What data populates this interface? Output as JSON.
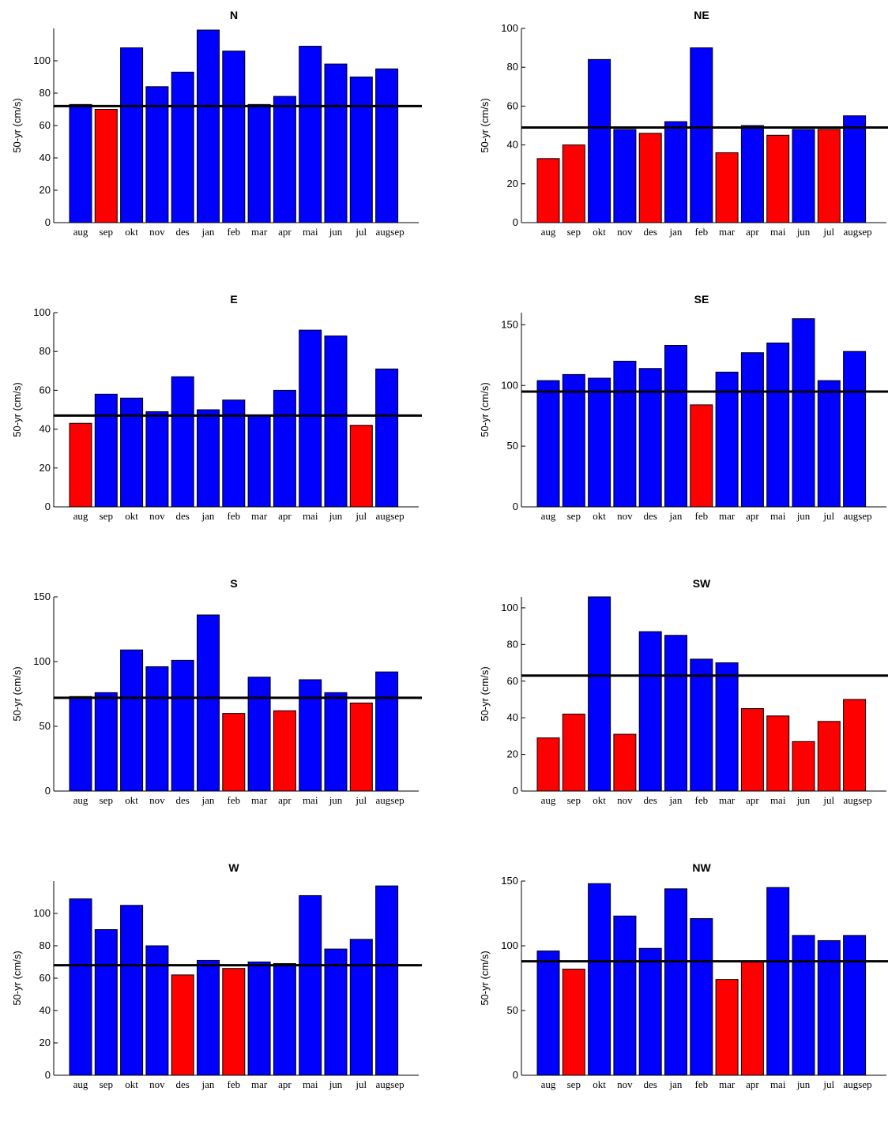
{
  "chart_data": [
    {
      "type": "bar",
      "title": "N",
      "ylabel": "50-yr (cm/s)",
      "xlabel": "",
      "categories": [
        "aug",
        "sep",
        "okt",
        "nov",
        "des",
        "jan",
        "feb",
        "mar",
        "apr",
        "mai",
        "jun",
        "jul",
        "augsep"
      ],
      "values": [
        73,
        70,
        108,
        84,
        93,
        119,
        106,
        73,
        78,
        109,
        98,
        90,
        95
      ],
      "colors": [
        "blue",
        "red",
        "blue",
        "blue",
        "blue",
        "blue",
        "blue",
        "blue",
        "blue",
        "blue",
        "blue",
        "blue",
        "blue"
      ],
      "reference_line": 72,
      "ylim": [
        0,
        120
      ],
      "yticks": [
        0,
        20,
        40,
        60,
        80,
        100
      ]
    },
    {
      "type": "bar",
      "title": "NE",
      "ylabel": "50-yr (cm/s)",
      "xlabel": "",
      "categories": [
        "aug",
        "sep",
        "okt",
        "nov",
        "des",
        "jan",
        "feb",
        "mar",
        "apr",
        "mai",
        "jun",
        "jul",
        "augsep"
      ],
      "values": [
        33,
        40,
        84,
        48,
        46,
        52,
        90,
        36,
        50,
        45,
        48,
        48,
        55
      ],
      "colors": [
        "red",
        "red",
        "blue",
        "blue",
        "red",
        "blue",
        "blue",
        "red",
        "blue",
        "red",
        "blue",
        "red",
        "blue"
      ],
      "reference_line": 49,
      "ylim": [
        0,
        100
      ],
      "yticks": [
        0,
        20,
        40,
        60,
        80,
        100
      ]
    },
    {
      "type": "bar",
      "title": "E",
      "ylabel": "50-yr (cm/s)",
      "xlabel": "",
      "categories": [
        "aug",
        "sep",
        "okt",
        "nov",
        "des",
        "jan",
        "feb",
        "mar",
        "apr",
        "mai",
        "jun",
        "jul",
        "augsep"
      ],
      "values": [
        43,
        58,
        56,
        49,
        67,
        50,
        55,
        47,
        60,
        91,
        88,
        42,
        71
      ],
      "colors": [
        "red",
        "blue",
        "blue",
        "blue",
        "blue",
        "blue",
        "blue",
        "blue",
        "blue",
        "blue",
        "blue",
        "red",
        "blue"
      ],
      "reference_line": 47,
      "ylim": [
        0,
        100
      ],
      "yticks": [
        0,
        20,
        40,
        60,
        80,
        100
      ]
    },
    {
      "type": "bar",
      "title": "SE",
      "ylabel": "50-yr (cm/s)",
      "xlabel": "",
      "categories": [
        "aug",
        "sep",
        "okt",
        "nov",
        "des",
        "jan",
        "feb",
        "mar",
        "apr",
        "mai",
        "jun",
        "jul",
        "augsep"
      ],
      "values": [
        104,
        109,
        106,
        120,
        114,
        133,
        84,
        111,
        127,
        135,
        155,
        104,
        128
      ],
      "colors": [
        "blue",
        "blue",
        "blue",
        "blue",
        "blue",
        "blue",
        "red",
        "blue",
        "blue",
        "blue",
        "blue",
        "blue",
        "blue"
      ],
      "reference_line": 95,
      "ylim": [
        0,
        160
      ],
      "yticks": [
        0,
        50,
        100,
        150
      ]
    },
    {
      "type": "bar",
      "title": "S",
      "ylabel": "50-yr (cm/s)",
      "xlabel": "",
      "categories": [
        "aug",
        "sep",
        "okt",
        "nov",
        "des",
        "jan",
        "feb",
        "mar",
        "apr",
        "mai",
        "jun",
        "jul",
        "augsep"
      ],
      "values": [
        73,
        76,
        109,
        96,
        101,
        136,
        60,
        88,
        62,
        86,
        76,
        68,
        92
      ],
      "colors": [
        "blue",
        "blue",
        "blue",
        "blue",
        "blue",
        "blue",
        "red",
        "blue",
        "red",
        "blue",
        "blue",
        "red",
        "blue"
      ],
      "reference_line": 72,
      "ylim": [
        0,
        150
      ],
      "yticks": [
        0,
        50,
        100,
        150
      ]
    },
    {
      "type": "bar",
      "title": "SW",
      "ylabel": "50-yr (cm/s)",
      "xlabel": "",
      "categories": [
        "aug",
        "sep",
        "okt",
        "nov",
        "des",
        "jan",
        "feb",
        "mar",
        "apr",
        "mai",
        "jun",
        "jul",
        "augsep"
      ],
      "values": [
        29,
        42,
        106,
        31,
        87,
        85,
        72,
        70,
        45,
        41,
        27,
        38,
        50
      ],
      "colors": [
        "red",
        "red",
        "blue",
        "red",
        "blue",
        "blue",
        "blue",
        "blue",
        "red",
        "red",
        "red",
        "red",
        "red"
      ],
      "reference_line": 63,
      "ylim": [
        0,
        106
      ],
      "yticks": [
        0,
        20,
        40,
        60,
        80,
        100
      ]
    },
    {
      "type": "bar",
      "title": "W",
      "ylabel": "50-yr (cm/s)",
      "xlabel": "",
      "categories": [
        "aug",
        "sep",
        "okt",
        "nov",
        "des",
        "jan",
        "feb",
        "mar",
        "apr",
        "mai",
        "jun",
        "jul",
        "augsep"
      ],
      "values": [
        109,
        90,
        105,
        80,
        62,
        71,
        66,
        70,
        69,
        111,
        78,
        84,
        117
      ],
      "colors": [
        "blue",
        "blue",
        "blue",
        "blue",
        "red",
        "blue",
        "red",
        "blue",
        "blue",
        "blue",
        "blue",
        "blue",
        "blue"
      ],
      "reference_line": 68,
      "ylim": [
        0,
        120
      ],
      "yticks": [
        0,
        20,
        40,
        60,
        80,
        100
      ]
    },
    {
      "type": "bar",
      "title": "NW",
      "ylabel": "50-yr (cm/s)",
      "xlabel": "",
      "categories": [
        "aug",
        "sep",
        "okt",
        "nov",
        "des",
        "jan",
        "feb",
        "mar",
        "apr",
        "mai",
        "jun",
        "jul",
        "augsep"
      ],
      "values": [
        96,
        82,
        148,
        123,
        98,
        144,
        121,
        74,
        88,
        145,
        108,
        104,
        108
      ],
      "colors": [
        "blue",
        "red",
        "blue",
        "blue",
        "blue",
        "blue",
        "blue",
        "red",
        "red",
        "blue",
        "blue",
        "blue",
        "blue"
      ],
      "reference_line": 88,
      "ylim": [
        0,
        150
      ],
      "yticks": [
        0,
        50,
        100,
        150
      ]
    }
  ],
  "colors": {
    "blue": "#0000ff",
    "red": "#ff0000",
    "edge": "#000000",
    "reference": "#000000"
  }
}
